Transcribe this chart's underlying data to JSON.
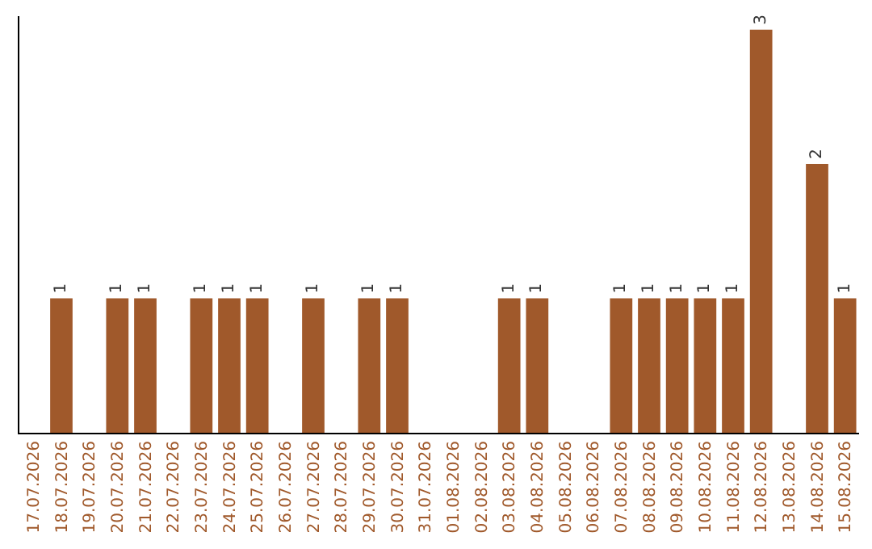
{
  "chart_data": {
    "type": "bar",
    "categories": [
      "17.07.2026",
      "18.07.2026",
      "19.07.2026",
      "20.07.2026",
      "21.07.2026",
      "22.07.2026",
      "23.07.2026",
      "24.07.2026",
      "25.07.2026",
      "26.07.2026",
      "27.07.2026",
      "28.07.2026",
      "29.07.2026",
      "30.07.2026",
      "31.07.2026",
      "01.08.2026",
      "02.08.2026",
      "03.08.2026",
      "04.08.2026",
      "05.08.2026",
      "06.08.2026",
      "07.08.2026",
      "08.08.2026",
      "09.08.2026",
      "10.08.2026",
      "11.08.2026",
      "12.08.2026",
      "13.08.2026",
      "14.08.2026",
      "15.08.2026"
    ],
    "values": [
      0,
      1,
      0,
      1,
      1,
      0,
      1,
      1,
      1,
      0,
      1,
      0,
      1,
      1,
      0,
      0,
      0,
      1,
      1,
      0,
      0,
      1,
      1,
      1,
      1,
      1,
      3,
      0,
      2,
      1
    ],
    "value_labels": [
      null,
      "1",
      null,
      "1",
      "1",
      null,
      "1",
      "1",
      "1",
      null,
      "1",
      null,
      "1",
      "1",
      null,
      null,
      null,
      "1",
      "1",
      null,
      null,
      "1",
      "1",
      "1",
      "1",
      "1",
      "3",
      null,
      "2",
      "1"
    ],
    "color": "#a0592b",
    "ylim": [
      0,
      3.1
    ],
    "tick_labels": "x",
    "grid": false,
    "legend": false
  }
}
